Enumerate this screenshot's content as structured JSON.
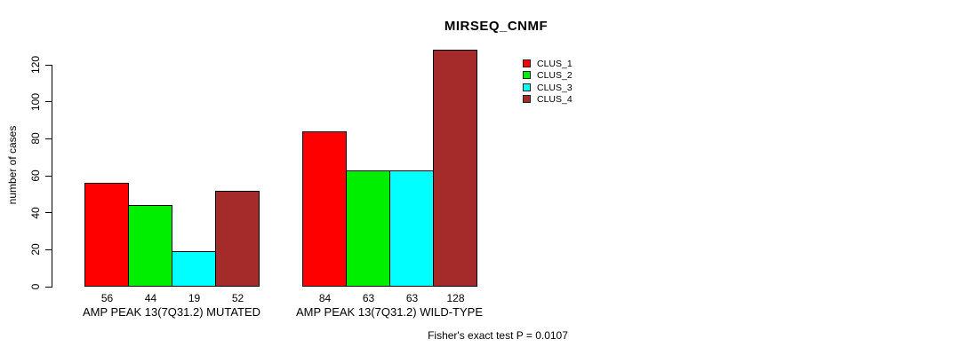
{
  "chart_data": {
    "type": "bar",
    "title": "MIRSEQ_CNMF",
    "ylabel": "number of cases",
    "xlabel": "",
    "yticks": [
      0,
      20,
      40,
      60,
      80,
      100,
      120
    ],
    "ylim": [
      0,
      130
    ],
    "grid": false,
    "legend_position": "top-right",
    "categories": [
      "AMP PEAK 13(7Q31.2) MUTATED",
      "AMP PEAK 13(7Q31.2) WILD-TYPE"
    ],
    "series": [
      {
        "name": "CLUS_1",
        "color": "#FF0000",
        "values": [
          56,
          84
        ]
      },
      {
        "name": "CLUS_2",
        "color": "#00EE00",
        "values": [
          44,
          63
        ]
      },
      {
        "name": "CLUS_3",
        "color": "#00FFFF",
        "values": [
          19,
          63
        ]
      },
      {
        "name": "CLUS_4",
        "color": "#A52A2A",
        "values": [
          52,
          128
        ]
      }
    ],
    "bar_value_labels": [
      [
        56,
        44,
        19,
        52
      ],
      [
        84,
        63,
        63,
        128
      ]
    ],
    "annotation": "Fisher's exact test P = 0.0107"
  },
  "colors": {
    "axis": "#000000",
    "text": "#000000",
    "background": "#FFFFFF"
  }
}
